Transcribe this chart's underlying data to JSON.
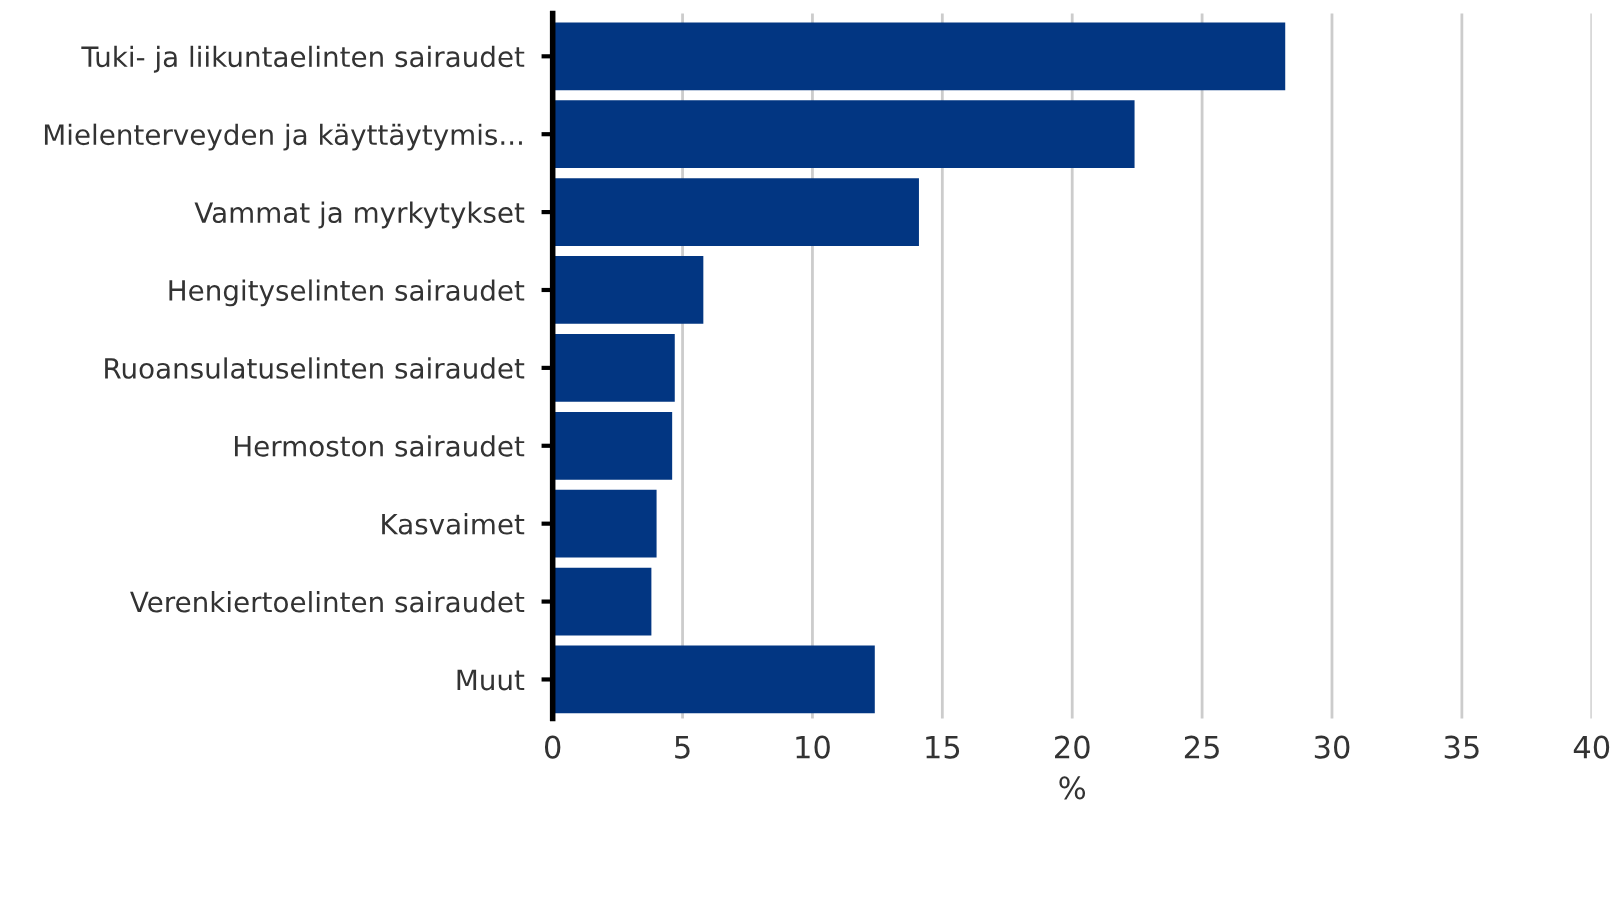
{
  "chart_data": {
    "type": "bar",
    "orientation": "horizontal",
    "categories": [
      "Tuki- ja liikuntaelinten sairaudet",
      "Mielenterveyden ja käyttäytymis...",
      "Vammat ja myrkytykset",
      "Hengityselinten sairaudet",
      "Ruoansulatuselinten sairaudet",
      "Hermoston sairaudet",
      "Kasvaimet",
      "Verenkiertoelinten sairaudet",
      "Muut"
    ],
    "values": [
      28.2,
      22.4,
      14.1,
      5.8,
      4.7,
      4.6,
      4.0,
      3.8,
      12.4
    ],
    "color": "#023682",
    "xlabel": "%",
    "xlim": [
      0,
      40
    ],
    "xticks": [
      0,
      5,
      10,
      15,
      20,
      25,
      30,
      35,
      40
    ],
    "grid": "x"
  }
}
